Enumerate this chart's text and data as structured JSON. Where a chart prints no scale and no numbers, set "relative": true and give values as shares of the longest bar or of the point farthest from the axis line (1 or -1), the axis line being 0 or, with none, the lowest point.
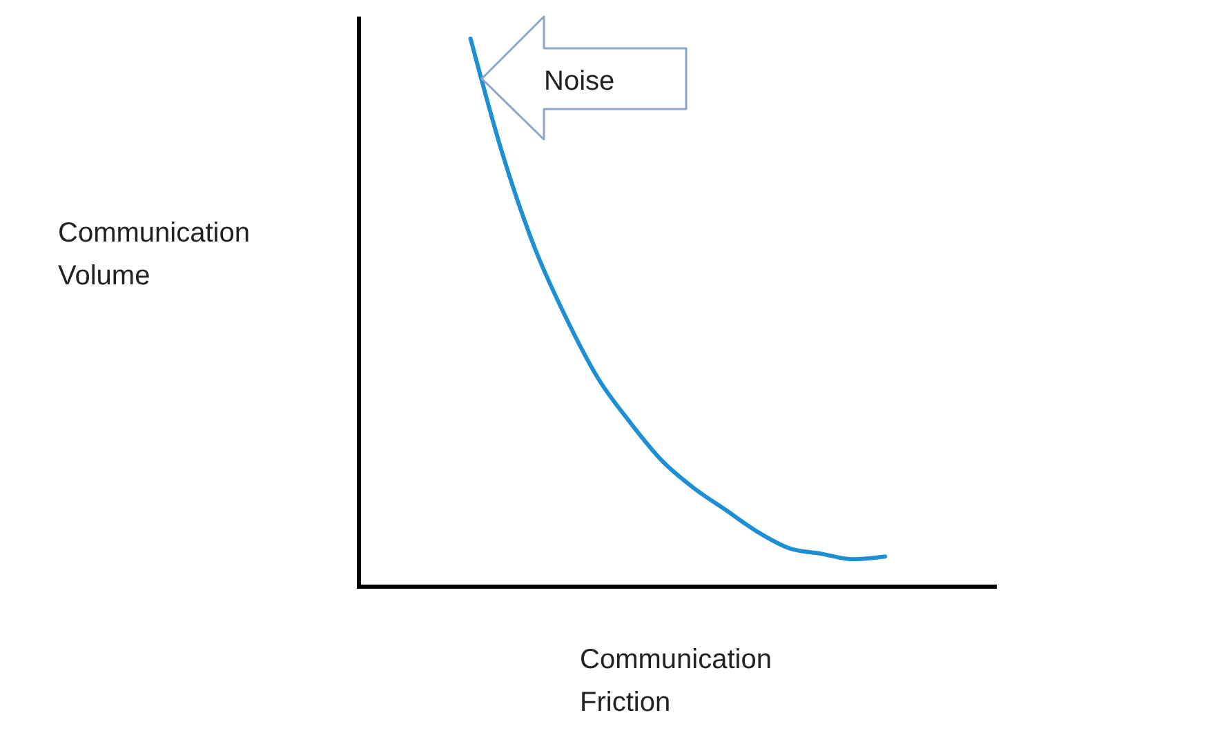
{
  "chart_data": {
    "type": "line",
    "relative": true,
    "xlabel": "Communication Friction",
    "ylabel": "Communication Volume",
    "annotations": [
      "Noise"
    ],
    "categories": [
      null,
      null,
      null,
      null,
      null,
      null,
      null,
      null,
      null,
      null,
      null,
      null,
      null,
      null,
      null,
      null,
      null,
      null,
      null,
      null
    ],
    "series": [
      {
        "color": "#1f8fd4",
        "values": [
          null,
          null,
          null,
          1,
          0.79,
          0.62,
          0.49,
          0.38,
          0.3,
          0.23,
          0.18,
          0.14,
          0.1,
          0.07,
          0.06,
          0.05,
          0.055,
          null,
          null,
          null
        ]
      }
    ]
  }
}
